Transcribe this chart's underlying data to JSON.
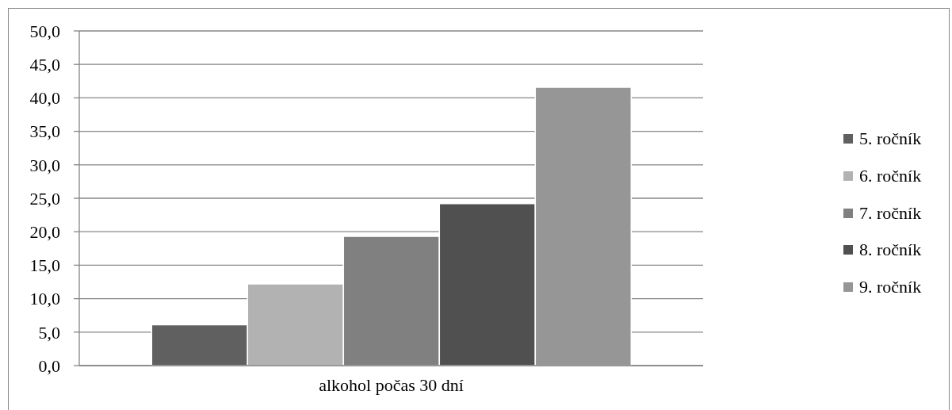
{
  "chart_data": {
    "type": "bar",
    "categories": [
      "alkohol počas 30 dní"
    ],
    "series": [
      {
        "name": "5. ročník",
        "color": "#606060",
        "values": [
          6.1
        ]
      },
      {
        "name": "6. ročník",
        "color": "#b2b2b2",
        "values": [
          12.2
        ]
      },
      {
        "name": "7. ročník",
        "color": "#808080",
        "values": [
          19.3
        ]
      },
      {
        "name": "8. ročník",
        "color": "#505050",
        "values": [
          24.2
        ]
      },
      {
        "name": "9. ročník",
        "color": "#969696",
        "values": [
          41.6
        ]
      }
    ],
    "ylim": [
      0,
      50
    ],
    "yticks": [
      {
        "value": 0,
        "label": "0,0"
      },
      {
        "value": 5,
        "label": "5,0"
      },
      {
        "value": 10,
        "label": "10,0"
      },
      {
        "value": 15,
        "label": "15,0"
      },
      {
        "value": 20,
        "label": "20,0"
      },
      {
        "value": 25,
        "label": "25,0"
      },
      {
        "value": 30,
        "label": "30,0"
      },
      {
        "value": 35,
        "label": "35,0"
      },
      {
        "value": 40,
        "label": "40,0"
      },
      {
        "value": 45,
        "label": "45,0"
      },
      {
        "value": 50,
        "label": "50,0"
      }
    ],
    "grid": "y",
    "legend": "right"
  }
}
